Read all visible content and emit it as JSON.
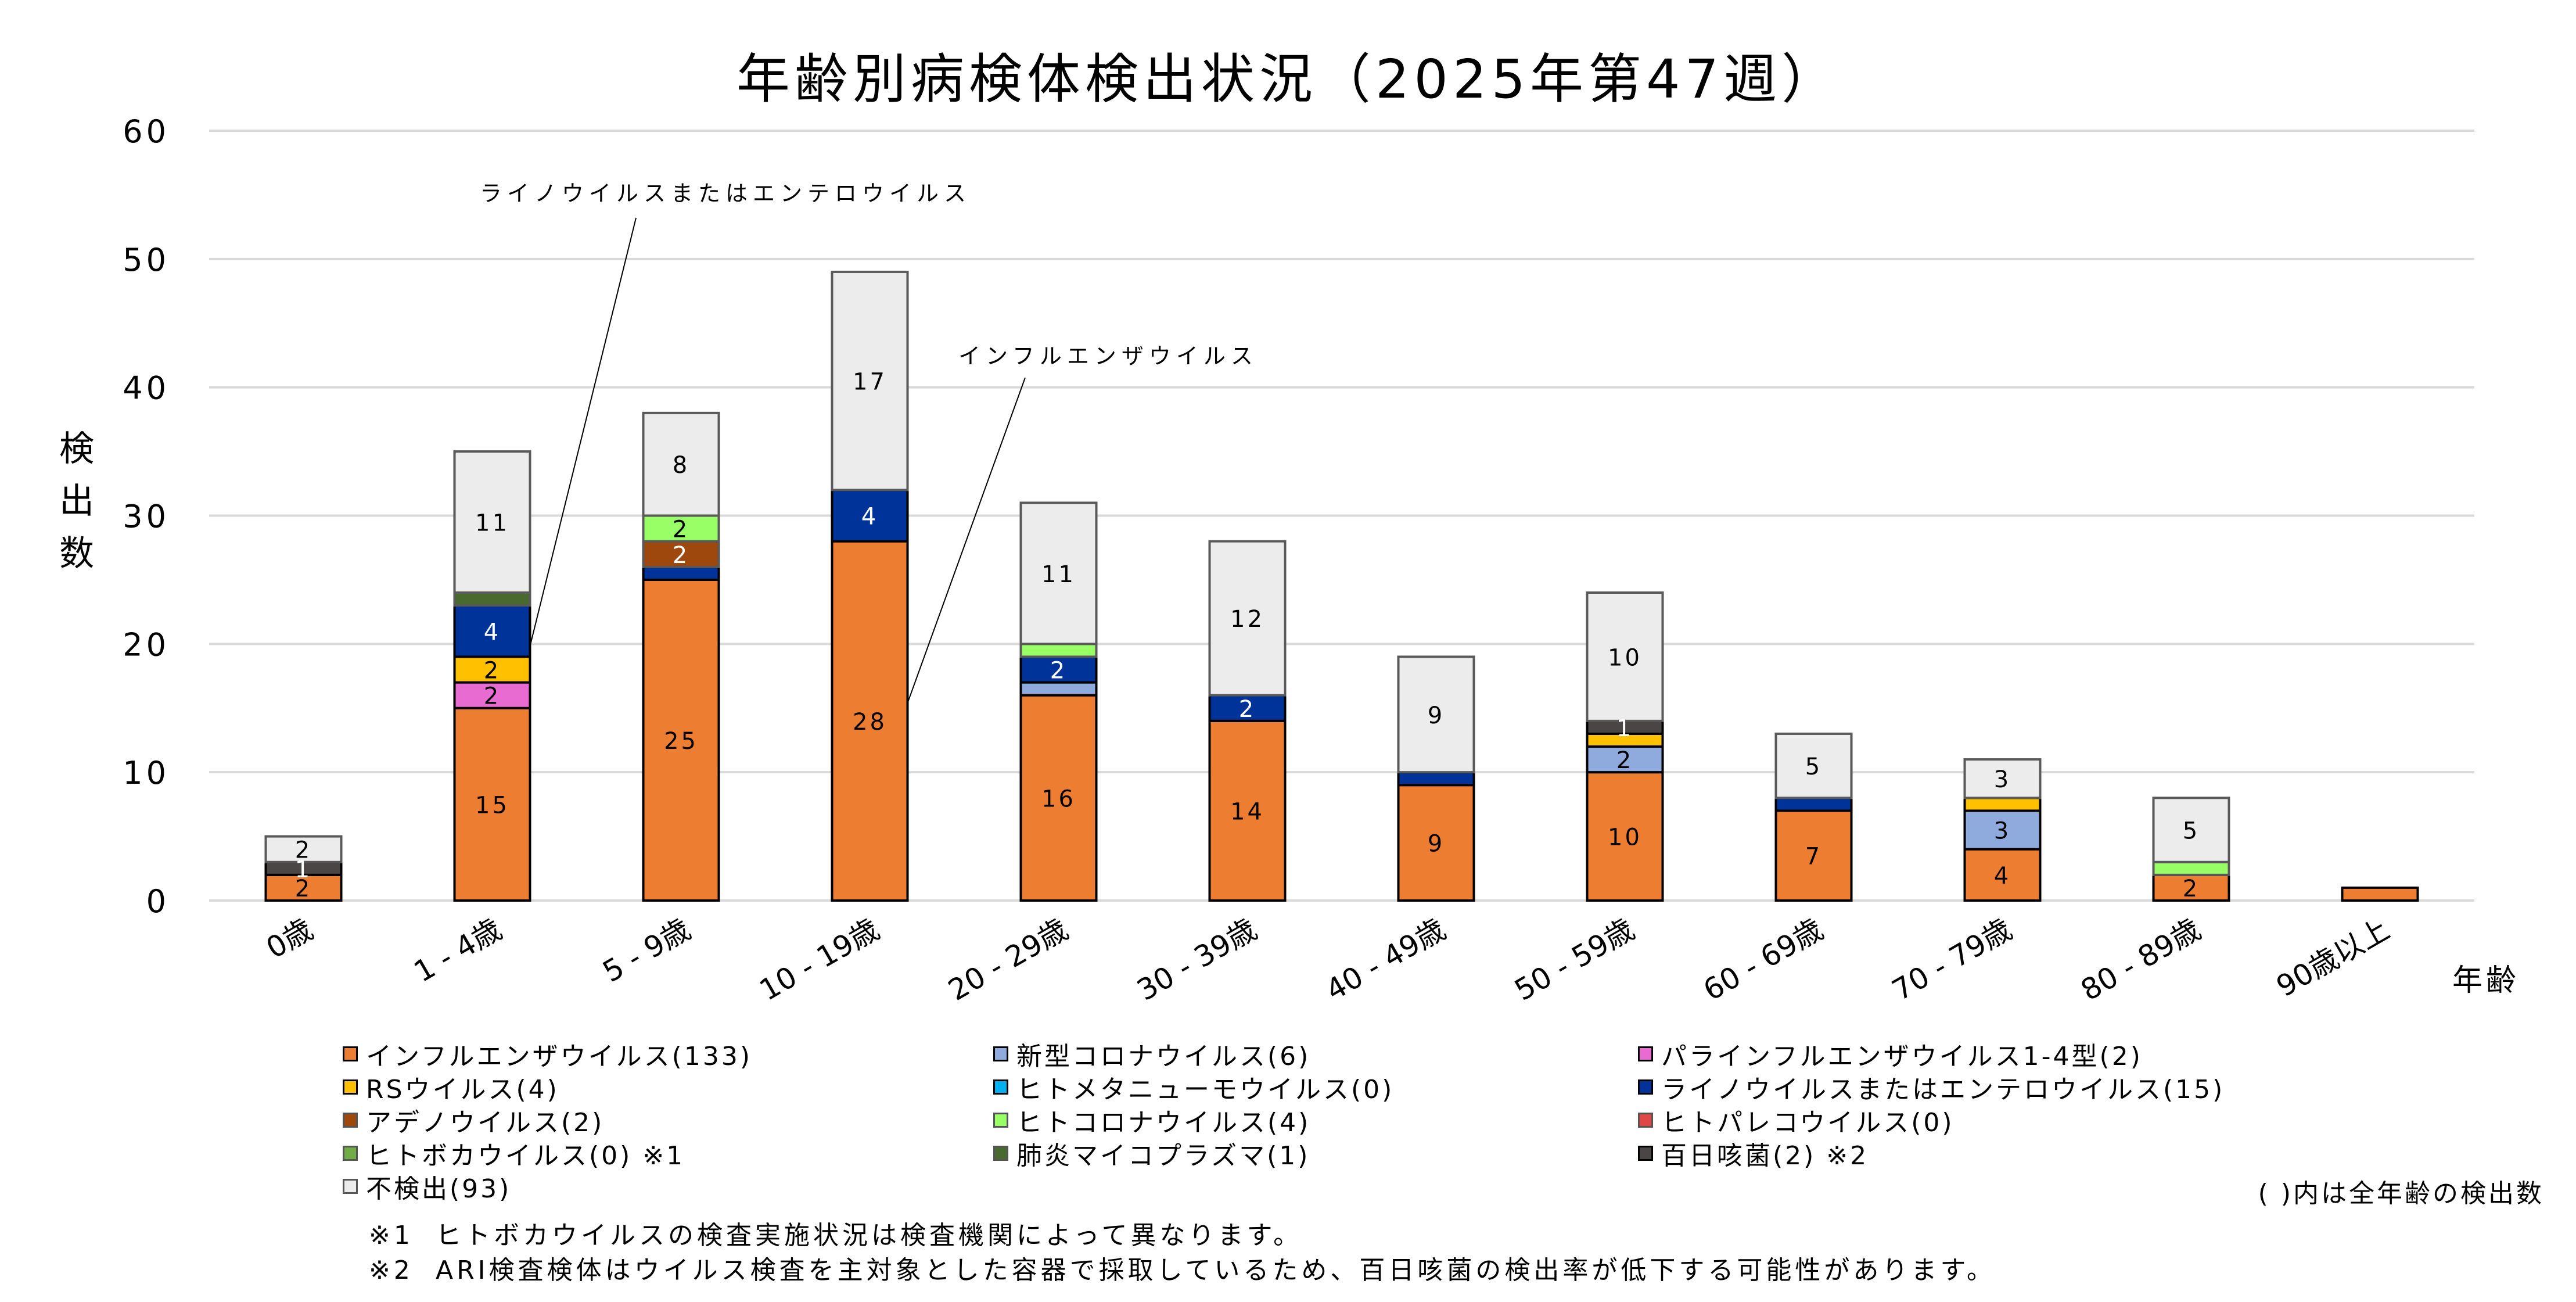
{
  "chart_data": {
    "type": "bar",
    "stacked": true,
    "title": "年齢別病検体検出状況（2025年第47週）",
    "xlabel": "年齢",
    "ylabel": "検出数",
    "ylim": [
      0,
      60
    ],
    "yticks": [
      0,
      10,
      20,
      30,
      40,
      50,
      60
    ],
    "grid": true,
    "legend_position": "bottom",
    "categories": [
      "0歳",
      "1 - 4歳",
      "5 - 9歳",
      "10 - 19歳",
      "20 - 29歳",
      "30 - 39歳",
      "40 - 49歳",
      "50 - 59歳",
      "60 - 69歳",
      "70 - 79歳",
      "80 - 89歳",
      "90歳以上"
    ],
    "series": [
      {
        "name": "インフルエンザウイルス",
        "total": 133,
        "color": "#ED7D31",
        "values": [
          2,
          15,
          25,
          28,
          16,
          14,
          9,
          10,
          7,
          4,
          2,
          1
        ],
        "labels": [
          true,
          true,
          true,
          true,
          true,
          true,
          true,
          true,
          true,
          true,
          true,
          false
        ],
        "label_color": "#000000"
      },
      {
        "name": "新型コロナウイルス",
        "total": 6,
        "color": "#8FAADC",
        "values": [
          0,
          0,
          0,
          0,
          1,
          0,
          0,
          2,
          0,
          3,
          0,
          0
        ],
        "labels": [
          false,
          false,
          false,
          false,
          false,
          false,
          false,
          true,
          false,
          true,
          false,
          false
        ],
        "label_color": "#000000"
      },
      {
        "name": "パラインフルエンザウイルス1-4型",
        "total": 2,
        "color": "#E76BD0",
        "values": [
          0,
          2,
          0,
          0,
          0,
          0,
          0,
          0,
          0,
          0,
          0,
          0
        ],
        "labels": [
          false,
          true,
          false,
          false,
          false,
          false,
          false,
          false,
          false,
          false,
          false,
          false
        ],
        "label_color": "#000000"
      },
      {
        "name": "RSウイルス",
        "total": 4,
        "color": "#FFC000",
        "values": [
          0,
          2,
          0,
          0,
          0,
          0,
          0,
          1,
          0,
          1,
          0,
          0
        ],
        "labels": [
          false,
          true,
          false,
          false,
          false,
          false,
          false,
          false,
          false,
          false,
          false,
          false
        ],
        "label_color": "#000000"
      },
      {
        "name": "ヒトメタニューモウイルス",
        "total": 0,
        "color": "#00B0F0",
        "values": [
          0,
          0,
          0,
          0,
          0,
          0,
          0,
          0,
          0,
          0,
          0,
          0
        ],
        "labels": [
          false,
          false,
          false,
          false,
          false,
          false,
          false,
          false,
          false,
          false,
          false,
          false
        ],
        "label_color": "#000000"
      },
      {
        "name": "ライノウイルスまたはエンテロウイルス",
        "total": 15,
        "color": "#003399",
        "values": [
          0,
          4,
          1,
          4,
          2,
          2,
          1,
          0,
          1,
          0,
          0,
          0
        ],
        "labels": [
          false,
          true,
          false,
          true,
          true,
          true,
          false,
          false,
          false,
          false,
          false,
          false
        ],
        "label_color": "#FFFFFF"
      },
      {
        "name": "アデノウイルス",
        "total": 2,
        "color": "#9E480E",
        "values": [
          0,
          0,
          2,
          0,
          0,
          0,
          0,
          0,
          0,
          0,
          0,
          0
        ],
        "labels": [
          false,
          false,
          true,
          false,
          false,
          false,
          false,
          false,
          false,
          false,
          false,
          false
        ],
        "label_color": "#FFFFFF"
      },
      {
        "name": "ヒトコロナウイルス",
        "total": 4,
        "color": "#99FF66",
        "values": [
          0,
          0,
          2,
          0,
          1,
          0,
          0,
          0,
          0,
          0,
          1,
          0
        ],
        "labels": [
          false,
          false,
          true,
          false,
          false,
          false,
          false,
          false,
          false,
          false,
          false,
          false
        ],
        "label_color": "#000000"
      },
      {
        "name": "ヒトパレコウイルス",
        "total": 0,
        "color": "#E04848",
        "values": [
          0,
          0,
          0,
          0,
          0,
          0,
          0,
          0,
          0,
          0,
          0,
          0
        ],
        "labels": [
          false,
          false,
          false,
          false,
          false,
          false,
          false,
          false,
          false,
          false,
          false,
          false
        ],
        "label_color": "#000000"
      },
      {
        "name": "ヒトボカウイルス",
        "total": 0,
        "color": "#70AD47",
        "values": [
          0,
          0,
          0,
          0,
          0,
          0,
          0,
          0,
          0,
          0,
          0,
          0
        ],
        "labels": [
          false,
          false,
          false,
          false,
          false,
          false,
          false,
          false,
          false,
          false,
          false,
          false
        ],
        "label_color": "#000000"
      },
      {
        "name": "肺炎マイコプラズマ",
        "total": 1,
        "color": "#486A2E",
        "values": [
          0,
          1,
          0,
          0,
          0,
          0,
          0,
          0,
          0,
          0,
          0,
          0
        ],
        "labels": [
          false,
          false,
          false,
          false,
          false,
          false,
          false,
          false,
          false,
          false,
          false,
          false
        ],
        "label_color": "#000000"
      },
      {
        "name": "百日咳菌",
        "total": 2,
        "color": "#4A4646",
        "values": [
          1,
          0,
          0,
          0,
          0,
          0,
          0,
          1,
          0,
          0,
          0,
          0
        ],
        "labels": [
          true,
          false,
          false,
          false,
          false,
          false,
          false,
          true,
          false,
          false,
          false,
          false
        ],
        "label_color": "#FFFFFF"
      },
      {
        "name": "不検出",
        "total": 93,
        "color": "#ECECEC",
        "values": [
          2,
          11,
          8,
          17,
          11,
          12,
          9,
          10,
          5,
          3,
          5,
          0
        ],
        "labels": [
          true,
          true,
          true,
          true,
          true,
          true,
          true,
          true,
          true,
          true,
          true,
          false
        ],
        "label_color": "#000000"
      }
    ],
    "annotations": [
      {
        "text": "ライノウイルスまたはエンテロウイルス",
        "points_to_category": "1 - 4歳",
        "points_to_series": "ライノウイルスまたはエンテロウイルス"
      },
      {
        "text": "インフルエンザウイルス",
        "points_to_category": "10 - 19歳",
        "points_to_series": "インフルエンザウイルス"
      }
    ]
  },
  "legend": {
    "items": [
      {
        "label": "インフルエンザウイルス(133)",
        "color": "#ED7D31"
      },
      {
        "label": "新型コロナウイルス(6)",
        "color": "#8FAADC"
      },
      {
        "label": "パラインフルエンザウイルス1-4型(2)",
        "color": "#E76BD0"
      },
      {
        "label": "RSウイルス(4)",
        "color": "#FFC000"
      },
      {
        "label": "ヒトメタニューモウイルス(0)",
        "color": "#00B0F0"
      },
      {
        "label": "ライノウイルスまたはエンテロウイルス(15)",
        "color": "#003399"
      },
      {
        "label": "アデノウイルス(2)",
        "color": "#9E480E"
      },
      {
        "label": "ヒトコロナウイルス(4)",
        "color": "#99FF66"
      },
      {
        "label": "ヒトパレコウイルス(0)",
        "color": "#E04848"
      },
      {
        "label": "ヒトボカウイルス(0) ※1",
        "color": "#70AD47"
      },
      {
        "label": "肺炎マイコプラズマ(1)",
        "color": "#486A2E"
      },
      {
        "label": "百日咳菌(2) ※2",
        "color": "#4A4646"
      },
      {
        "label": "不検出(93)",
        "color": "#ECECEC"
      }
    ],
    "note": "( )内は全年齢の検出数"
  },
  "footnotes": [
    {
      "mark": "※1",
      "text": "ヒトボカウイルスの検査実施状況は検査機関によって異なります。"
    },
    {
      "mark": "※2",
      "text": "ARI検査検体はウイルス検査を主対象とした容器で採取しているため、百日咳菌の検出率が低下する可能性があります。"
    }
  ]
}
